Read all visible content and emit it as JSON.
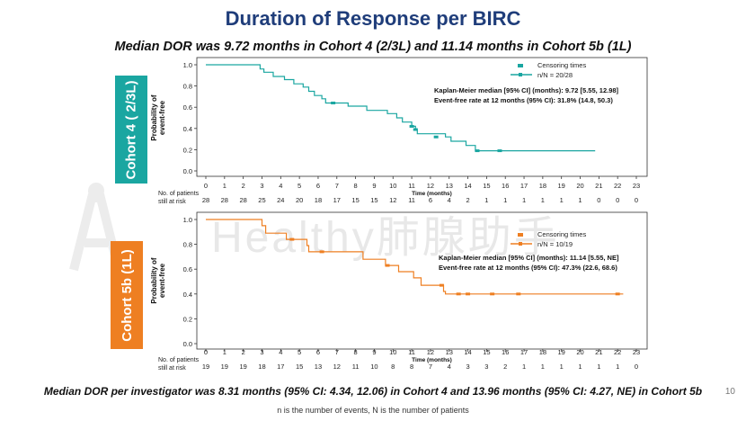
{
  "title": "Duration of Response per BIRC",
  "subtitle": "Median DOR was 9.72 months  in Cohort 4 (2/3L) and 11.14 months  in Cohort 5b (1L)",
  "watermark": "Healthy肺腺助手",
  "footer_main": "Median DOR per investigator was 8.31 months (95% CI: 4.34, 12.06) in Cohort 4 and 13.96 months (95% CI: 4.27, NE) in Cohort 5b",
  "footer_note": "n is the number of events, N is the number of patients",
  "page_number": "10",
  "colors": {
    "title": "#1f3d7a",
    "teal": "#1aa6a1",
    "orange": "#ee7f22"
  },
  "chart_data": [
    {
      "type": "line",
      "panel": "Cohort 4 ( 2/3L)",
      "cohort_label": "Cohort 4 ( 2/3L)",
      "color": "#1aa6a1",
      "ylabel": "Probability of event-free",
      "xlabel": "Time (months)",
      "x_ticks": [
        0,
        1,
        2,
        3,
        4,
        5,
        6,
        7,
        8,
        9,
        10,
        11,
        12,
        13,
        14,
        15,
        16,
        17,
        18,
        19,
        20,
        21,
        22,
        23
      ],
      "y_ticks": [
        "0.0",
        "0.2",
        "0.4",
        "0.6",
        "0.8",
        "1.0"
      ],
      "xlim": [
        0,
        23
      ],
      "ylim": [
        0,
        1
      ],
      "legend_entries": [
        "Censoring times",
        "n/N = 20/28"
      ],
      "annotation_lines": [
        "Kaplan-Meier median [95% CI] (months): 9.72 [5.55, 12.98]",
        "Event-free rate at 12 months (95% CI):  31.8% (14.8, 50.3)"
      ],
      "at_risk_label": [
        "No. of patients",
        "still at risk"
      ],
      "at_risk": [
        28,
        28,
        28,
        25,
        24,
        20,
        18,
        17,
        15,
        15,
        12,
        11,
        6,
        4,
        2,
        1,
        1,
        1,
        1,
        1,
        1,
        0,
        0,
        0
      ],
      "steps": [
        [
          0,
          1.0
        ],
        [
          2.2,
          1.0
        ],
        [
          2.9,
          0.96
        ],
        [
          3.1,
          0.93
        ],
        [
          3.6,
          0.89
        ],
        [
          4.2,
          0.86
        ],
        [
          4.7,
          0.82
        ],
        [
          5.2,
          0.79
        ],
        [
          5.5,
          0.75
        ],
        [
          5.8,
          0.71
        ],
        [
          6.2,
          0.68
        ],
        [
          6.4,
          0.64
        ],
        [
          7.6,
          0.61
        ],
        [
          8.6,
          0.57
        ],
        [
          9.7,
          0.54
        ],
        [
          10.2,
          0.5
        ],
        [
          10.5,
          0.46
        ],
        [
          11.0,
          0.42
        ],
        [
          11.2,
          0.39
        ],
        [
          11.3,
          0.35
        ],
        [
          12.8,
          0.32
        ],
        [
          13.1,
          0.28
        ],
        [
          13.9,
          0.24
        ],
        [
          14.4,
          0.19
        ],
        [
          20.8,
          0.19
        ]
      ],
      "censor": [
        [
          6.8,
          0.64
        ],
        [
          11.0,
          0.42
        ],
        [
          11.2,
          0.39
        ],
        [
          12.3,
          0.32
        ],
        [
          14.5,
          0.19
        ],
        [
          15.7,
          0.19
        ]
      ]
    },
    {
      "type": "line",
      "panel": "Cohort 5b (1L)",
      "cohort_label": "Cohort 5b (1L)",
      "color": "#ee7f22",
      "ylabel": "Probability of event-free",
      "xlabel": "Time (months)",
      "x_ticks": [
        0,
        1,
        2,
        3,
        4,
        5,
        6,
        7,
        8,
        9,
        10,
        11,
        12,
        13,
        14,
        15,
        16,
        17,
        18,
        19,
        20,
        21,
        22,
        23
      ],
      "y_ticks": [
        "0.0",
        "0.2",
        "0.4",
        "0.6",
        "0.8",
        "1.0"
      ],
      "xlim": [
        0,
        23
      ],
      "ylim": [
        0,
        1
      ],
      "legend_entries": [
        "Censoring times",
        "n/N = 10/19"
      ],
      "annotation_lines": [
        "Kaplan-Meier median [95% CI] (months): 11.14 [5.55, NE]",
        "Event-free rate at 12 months (95% CI): 47.3% (22.6, 68.6)"
      ],
      "at_risk_label": [
        "No. of patients",
        "still at risk"
      ],
      "at_risk": [
        19,
        19,
        19,
        18,
        17,
        15,
        13,
        12,
        11,
        10,
        8,
        8,
        7,
        4,
        3,
        3,
        2,
        1,
        1,
        1,
        1,
        1,
        1,
        0
      ],
      "steps": [
        [
          0,
          1.0
        ],
        [
          2.9,
          1.0
        ],
        [
          3.0,
          0.95
        ],
        [
          3.2,
          0.89
        ],
        [
          4.3,
          0.84
        ],
        [
          5.4,
          0.79
        ],
        [
          5.5,
          0.74
        ],
        [
          8.4,
          0.68
        ],
        [
          9.6,
          0.63
        ],
        [
          10.3,
          0.58
        ],
        [
          11.1,
          0.53
        ],
        [
          11.5,
          0.47
        ],
        [
          12.6,
          0.47
        ],
        [
          12.7,
          0.42
        ],
        [
          12.8,
          0.4
        ],
        [
          22.3,
          0.4
        ]
      ],
      "censor": [
        [
          4.6,
          0.84
        ],
        [
          6.2,
          0.74
        ],
        [
          9.7,
          0.63
        ],
        [
          12.6,
          0.47
        ],
        [
          13.5,
          0.4
        ],
        [
          14.0,
          0.4
        ],
        [
          15.3,
          0.4
        ],
        [
          16.7,
          0.4
        ],
        [
          22.0,
          0.4
        ]
      ]
    }
  ]
}
